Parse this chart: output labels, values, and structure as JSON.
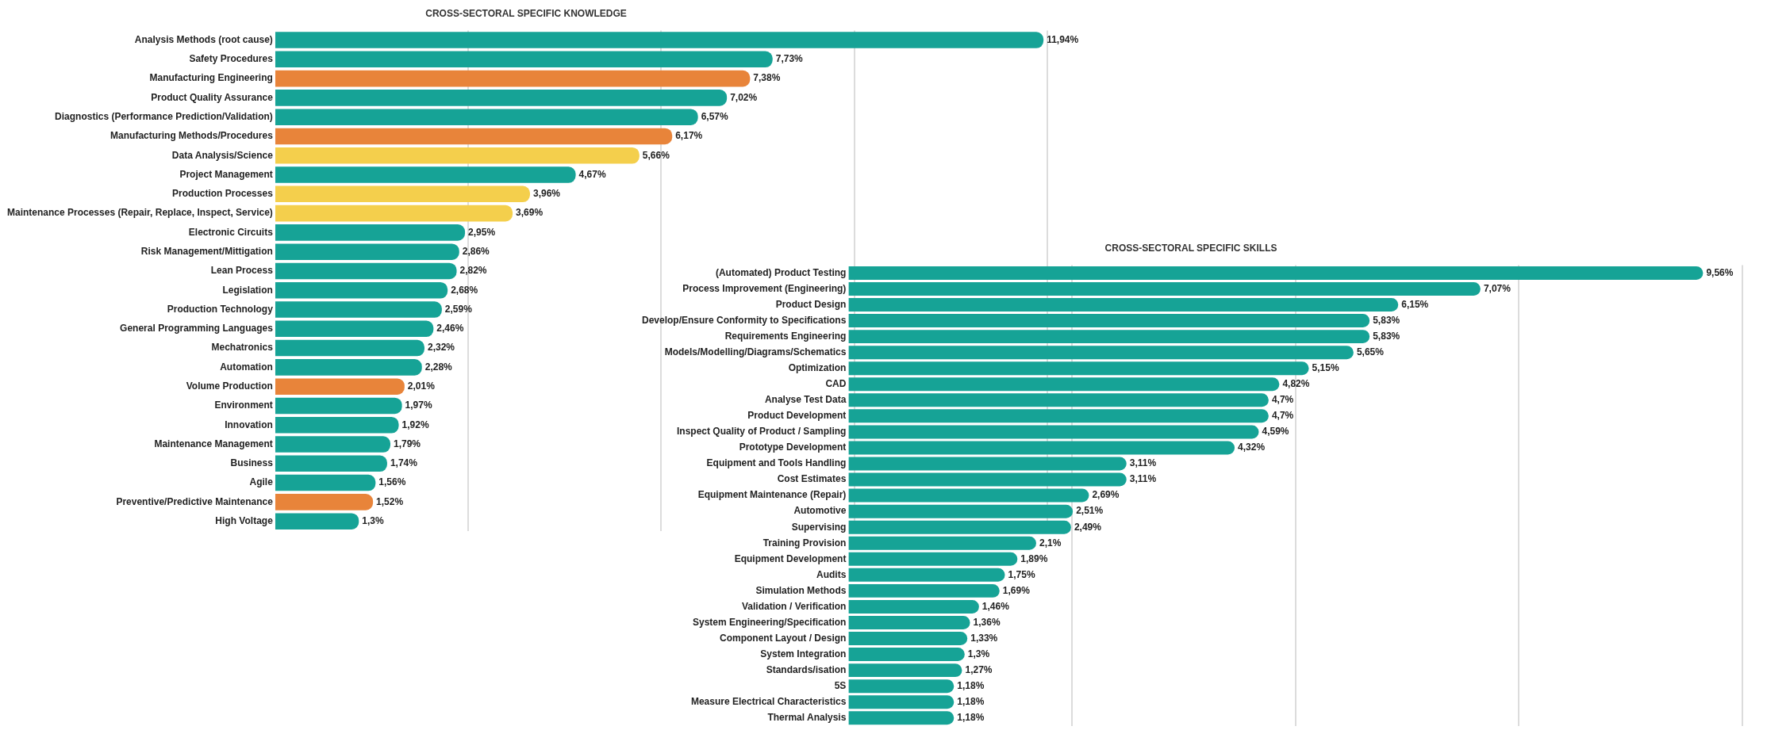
{
  "chart_data": [
    {
      "type": "bar",
      "orientation": "horizontal",
      "title": "CROSS-SECTORAL SPECIFIC KNOWLEDGE",
      "tick_labels": "y",
      "grid": "x",
      "xlim": [
        0,
        12
      ],
      "xticks": [
        {
          "value": 3,
          "label": null
        },
        {
          "value": 6,
          "label": null
        },
        {
          "value": 9,
          "label": null
        },
        {
          "value": 12,
          "label": null
        }
      ],
      "categories": [
        "Analysis Methods (root cause)",
        "Safety Procedures",
        "Manufacturing Engineering",
        "Product Quality Assurance",
        "Diagnostics (Performance Prediction/Validation)",
        "Manufacturing Methods/Procedures",
        "Data Analysis/Science",
        "Project Management",
        "Production Processes",
        "Maintenance Processes (Repair, Replace, Inspect, Service)",
        "Electronic Circuits",
        "Risk Management/Mittigation",
        "Lean Process",
        "Legislation",
        "Production Technology",
        "General Programming Languages",
        "Mechatronics",
        "Automation",
        "Volume Production",
        "Environment",
        "Innovation",
        "Maintenance Management",
        "Business",
        "Agile",
        "Preventive/Predictive Maintenance",
        "High Voltage"
      ],
      "values": [
        11.94,
        7.73,
        7.38,
        7.02,
        6.57,
        6.17,
        5.66,
        4.67,
        3.96,
        3.69,
        2.95,
        2.86,
        2.82,
        2.68,
        2.59,
        2.46,
        2.32,
        2.28,
        2.01,
        1.97,
        1.92,
        1.79,
        1.74,
        1.56,
        1.52,
        1.3
      ],
      "value_labels": [
        "11,94%",
        "7,73%",
        "7,38%",
        "7,02%",
        "6,57%",
        "6,17%",
        "5,66%",
        "4,67%",
        "3,96%",
        "3,69%",
        "2,95%",
        "2,86%",
        "2,82%",
        "2,68%",
        "2,59%",
        "2,46%",
        "2,32%",
        "2,28%",
        "2,01%",
        "1,97%",
        "1,92%",
        "1,79%",
        "1,74%",
        "1,56%",
        "1,52%",
        "1,3%"
      ],
      "colors": [
        "#16a396",
        "#16a396",
        "#e8843a",
        "#16a396",
        "#16a396",
        "#e8843a",
        "#f4cf4c",
        "#16a396",
        "#f4cf4c",
        "#f4cf4c",
        "#16a396",
        "#16a396",
        "#16a396",
        "#16a396",
        "#16a396",
        "#16a396",
        "#16a396",
        "#16a396",
        "#e8843a",
        "#16a396",
        "#16a396",
        "#16a396",
        "#16a396",
        "#16a396",
        "#e8843a",
        "#16a396"
      ]
    },
    {
      "type": "bar",
      "orientation": "horizontal",
      "title": "CROSS-SECTORAL SPECIFIC SKILLS",
      "tick_labels": "y",
      "grid": "x",
      "xlim": [
        0,
        10
      ],
      "xticks": [
        {
          "value": 2.5,
          "label": null
        },
        {
          "value": 5,
          "label": null
        },
        {
          "value": 7.5,
          "label": null
        },
        {
          "value": 10,
          "label": null
        }
      ],
      "categories": [
        "(Automated) Product Testing",
        "Process Improvement (Engineering)",
        "Product Design",
        "Develop/Ensure Conformity to Specifications",
        "Requirements Engineering",
        "Models/Modelling/Diagrams/Schematics",
        "Optimization",
        "CAD",
        "Analyse Test Data",
        "Product Development",
        "Inspect Quality of Product / Sampling",
        "Prototype Development",
        "Equipment and Tools Handling",
        "Cost Estimates",
        "Equipment Maintenance (Repair)",
        "Automotive",
        "Supervising",
        "Training Provision",
        "Equipment Development",
        "Audits",
        "Simulation Methods",
        "Validation / Verification",
        "System Engineering/Specification",
        "Component Layout / Design",
        "System Integration",
        "Standards/isation",
        "5S",
        "Measure Electrical Characteristics",
        "Thermal Analysis"
      ],
      "values": [
        9.56,
        7.07,
        6.15,
        5.83,
        5.83,
        5.65,
        5.15,
        4.82,
        4.7,
        4.7,
        4.59,
        4.32,
        3.11,
        3.11,
        2.69,
        2.51,
        2.49,
        2.1,
        1.89,
        1.75,
        1.69,
        1.46,
        1.36,
        1.33,
        1.3,
        1.27,
        1.18,
        1.18,
        1.18
      ],
      "value_labels": [
        "9,56%",
        "7,07%",
        "6,15%",
        "5,83%",
        "5,83%",
        "5,65%",
        "5,15%",
        "4,82%",
        "4,7%",
        "4,7%",
        "4,59%",
        "4,32%",
        "3,11%",
        "3,11%",
        "2,69%",
        "2,51%",
        "2,49%",
        "2,1%",
        "1,89%",
        "1,75%",
        "1,69%",
        "1,46%",
        "1,36%",
        "1,33%",
        "1,3%",
        "1,27%",
        "1,18%",
        "1,18%",
        "1,18%"
      ],
      "colors": [
        "#16a396",
        "#16a396",
        "#16a396",
        "#16a396",
        "#16a396",
        "#16a396",
        "#16a396",
        "#16a396",
        "#16a396",
        "#16a396",
        "#16a396",
        "#16a396",
        "#16a396",
        "#16a396",
        "#16a396",
        "#16a396",
        "#16a396",
        "#16a396",
        "#16a396",
        "#16a396",
        "#16a396",
        "#16a396",
        "#16a396",
        "#16a396",
        "#16a396",
        "#16a396",
        "#16a396",
        "#16a396",
        "#16a396"
      ]
    }
  ]
}
